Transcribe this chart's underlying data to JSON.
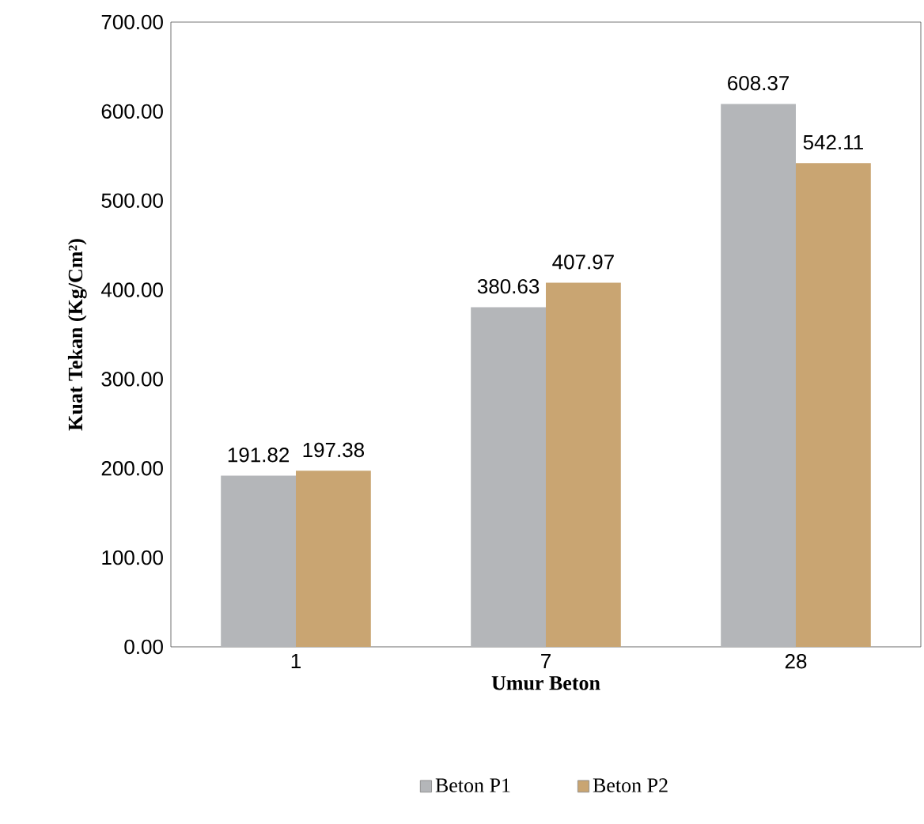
{
  "chart_data": {
    "type": "bar",
    "xlabel": "Umur Beton",
    "ylabel": "Kuat Tekan (Kg/Cm²)",
    "categories": [
      "1",
      "7",
      "28"
    ],
    "series": [
      {
        "name": "Beton P1",
        "color": "#b4b6b9",
        "values": [
          191.82,
          380.63,
          608.37
        ]
      },
      {
        "name": "Beton P2",
        "color": "#c9a572",
        "values": [
          197.38,
          407.97,
          542.11
        ]
      }
    ],
    "ylim": [
      0,
      700
    ],
    "yticks": [
      {
        "value": 0,
        "label": "0.00"
      },
      {
        "value": 100,
        "label": "100.00"
      },
      {
        "value": 200,
        "label": "200.00"
      },
      {
        "value": 300,
        "label": "300.00"
      },
      {
        "value": 400,
        "label": "400.00"
      },
      {
        "value": 500,
        "label": "500.00"
      },
      {
        "value": 600,
        "label": "600.00"
      },
      {
        "value": 700,
        "label": "700.00"
      }
    ],
    "data_labels": true,
    "legend": "bottom",
    "grid": false
  }
}
